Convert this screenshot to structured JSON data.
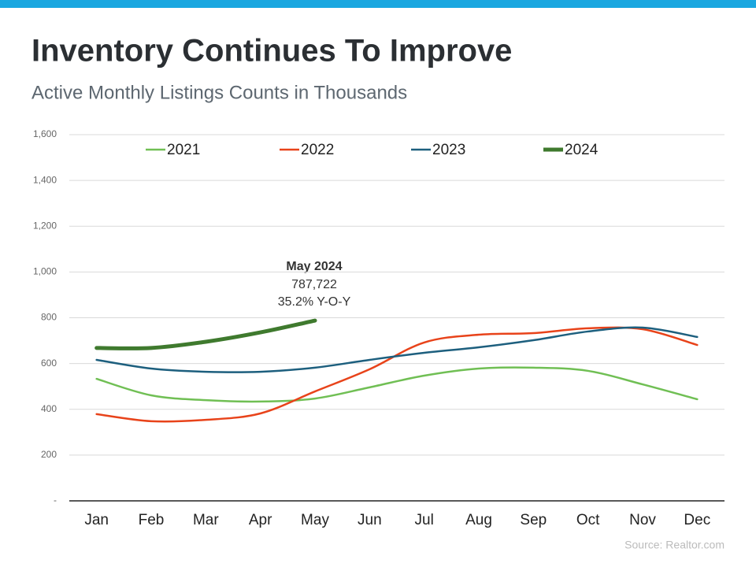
{
  "chart_data": {
    "type": "line",
    "title": "Inventory Continues To Improve",
    "subtitle": "Active Monthly Listings Counts in Thousands",
    "categories": [
      "Jan",
      "Feb",
      "Mar",
      "Apr",
      "May",
      "Jun",
      "Jul",
      "Aug",
      "Sep",
      "Oct",
      "Nov",
      "Dec"
    ],
    "series": [
      {
        "name": "2021",
        "color": "#70bf54",
        "values": [
          533,
          461,
          440,
          434,
          447,
          496,
          547,
          578,
          582,
          568,
          509,
          444
        ]
      },
      {
        "name": "2022",
        "color": "#e8431a",
        "values": [
          379,
          348,
          354,
          382,
          478,
          575,
          692,
          726,
          733,
          754,
          750,
          681
        ]
      },
      {
        "name": "2023",
        "color": "#1d5f7e",
        "values": [
          616,
          578,
          564,
          564,
          582,
          616,
          647,
          671,
          702,
          740,
          757,
          716
        ]
      },
      {
        "name": "2024",
        "color": "#3f7a2e",
        "values": [
          668,
          668,
          695,
          736,
          787.722,
          null,
          null,
          null,
          null,
          null,
          null,
          null
        ]
      }
    ],
    "ylim": [
      0,
      1600
    ],
    "yticks": [
      {
        "value": 0,
        "label": "-"
      },
      200,
      400,
      600,
      800,
      {
        "value": 1000,
        "label": "1,000"
      },
      {
        "value": 1200,
        "label": "1,200"
      },
      {
        "value": 1400,
        "label": "1,400"
      },
      {
        "value": 1600,
        "label": "1,600"
      }
    ],
    "grid": true,
    "annotation": {
      "title": "May 2024",
      "value": "787,722",
      "change": "35.2% Y-O-Y"
    },
    "source": "Source: Realtor.com"
  }
}
